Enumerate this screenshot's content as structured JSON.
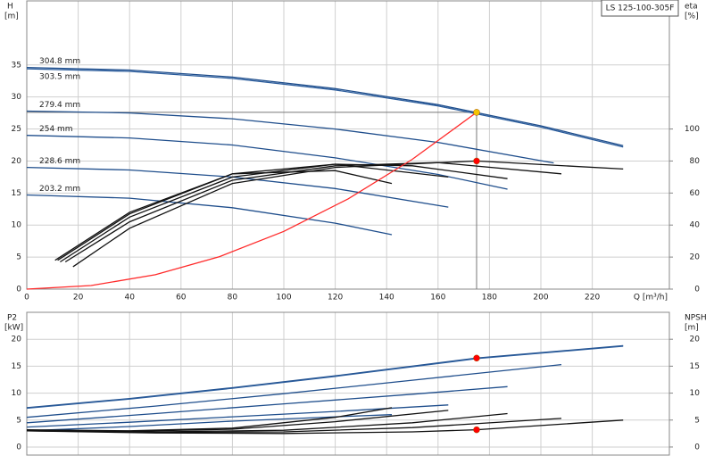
{
  "chart_data": [
    {
      "type": "line",
      "title": "LS 125-100-305F",
      "y_label": "H",
      "y_unit": "[m]",
      "y2_label": "eta",
      "y2_unit": "[%]",
      "x_label": "Q [m³/h]",
      "xlim": [
        0,
        250
      ],
      "xticks": [
        0,
        20,
        40,
        60,
        80,
        100,
        120,
        140,
        160,
        180,
        200,
        220
      ],
      "ylim": [
        0,
        45
      ],
      "yticks": [
        0,
        5,
        10,
        15,
        20,
        25,
        30,
        35
      ],
      "y2lim": [
        0,
        180
      ],
      "y2ticks": [
        0,
        20,
        40,
        60,
        80,
        100
      ],
      "grid": true,
      "show_xtick_labels": true,
      "guides": true,
      "series": [
        {
          "name": "304.8 mm",
          "color": "#1f4e8c",
          "x": [
            0,
            40,
            80,
            120,
            160,
            200,
            232
          ],
          "values": [
            34.6,
            34.2,
            33.1,
            31.3,
            28.8,
            25.5,
            22.4
          ]
        },
        {
          "name": "303.5 mm",
          "color": "#2a5c9c",
          "x": [
            0,
            40,
            80,
            120,
            160,
            200,
            232
          ],
          "values": [
            34.4,
            34.0,
            32.9,
            31.1,
            28.6,
            25.3,
            22.2
          ]
        },
        {
          "name": "279.4 mm",
          "color": "#1f4e8c",
          "x": [
            0,
            40,
            80,
            120,
            160,
            205
          ],
          "values": [
            27.8,
            27.5,
            26.6,
            25.0,
            22.9,
            19.7
          ]
        },
        {
          "name": "254 mm",
          "color": "#1f4e8c",
          "x": [
            0,
            40,
            80,
            120,
            160,
            187
          ],
          "values": [
            24.0,
            23.6,
            22.5,
            20.5,
            17.9,
            15.6
          ]
        },
        {
          "name": "228.6 mm",
          "color": "#1f4e8c",
          "x": [
            0,
            40,
            80,
            120,
            164
          ],
          "values": [
            19.0,
            18.6,
            17.5,
            15.7,
            12.8
          ]
        },
        {
          "name": "203.2 mm",
          "color": "#1f4e8c",
          "x": [
            0,
            40,
            80,
            120,
            142
          ],
          "values": [
            14.7,
            14.2,
            12.7,
            10.3,
            8.5
          ]
        },
        {
          "color": "#111111",
          "axis": "y2",
          "x": [
            18,
            40,
            80,
            120,
            175,
            232
          ],
          "values": [
            14,
            38,
            66,
            76,
            80,
            75
          ]
        },
        {
          "color": "#111111",
          "axis": "y2",
          "x": [
            15,
            40,
            80,
            120,
            160,
            208
          ],
          "values": [
            17,
            42,
            68,
            77,
            79,
            72
          ]
        },
        {
          "color": "#111111",
          "axis": "y2",
          "x": [
            13,
            40,
            80,
            120,
            150,
            187
          ],
          "values": [
            17,
            45,
            70,
            78,
            77,
            69
          ]
        },
        {
          "color": "#111111",
          "axis": "y2",
          "x": [
            12,
            40,
            80,
            120,
            164
          ],
          "values": [
            18,
            47,
            72,
            78,
            70
          ]
        },
        {
          "color": "#111111",
          "axis": "y2",
          "x": [
            11,
            40,
            80,
            120,
            142
          ],
          "values": [
            18,
            48,
            72,
            74,
            66
          ]
        },
        {
          "color": "#ff2a2a",
          "x": [
            0,
            25,
            50,
            75,
            100,
            125,
            150,
            175
          ],
          "values": [
            0,
            0.56,
            2.25,
            5.07,
            9.01,
            14.08,
            20.27,
            27.6
          ]
        }
      ],
      "points": [
        {
          "x": 175,
          "y": 27.6,
          "color": "#f5c400"
        },
        {
          "x": 175,
          "y": 80,
          "axis": "y2",
          "color": "#ff0000"
        }
      ]
    },
    {
      "type": "line",
      "y_label": "P2",
      "y_unit": "[kW]",
      "y2_label": "NPSH",
      "y2_unit": "[m]",
      "xlim": [
        0,
        250
      ],
      "xticks": [
        0,
        20,
        40,
        60,
        80,
        100,
        120,
        140,
        160,
        180,
        200,
        220
      ],
      "ylim": [
        -1.5,
        25
      ],
      "yticks": [
        0,
        5,
        10,
        15,
        20
      ],
      "y2lim": [
        -1.5,
        25
      ],
      "y2ticks": [
        0,
        5,
        10,
        15,
        20
      ],
      "grid": true,
      "show_xtick_labels": false,
      "guides": false,
      "series": [
        {
          "color": "#1f4e8c",
          "x": [
            0,
            40,
            80,
            120,
            175,
            232
          ],
          "values": [
            7.3,
            9.0,
            11.0,
            13.2,
            16.5,
            18.8
          ]
        },
        {
          "color": "#2a5c9c",
          "x": [
            0,
            40,
            80,
            120,
            175,
            232
          ],
          "values": [
            7.2,
            8.9,
            10.9,
            13.1,
            16.4,
            18.7
          ]
        },
        {
          "color": "#1f4e8c",
          "x": [
            0,
            50,
            100,
            150,
            208
          ],
          "values": [
            5.5,
            7.6,
            9.9,
            12.4,
            15.3
          ]
        },
        {
          "color": "#1f4e8c",
          "x": [
            0,
            50,
            100,
            150,
            187
          ],
          "values": [
            4.5,
            6.2,
            8.0,
            9.8,
            11.2
          ]
        },
        {
          "color": "#1f4e8c",
          "x": [
            0,
            40,
            80,
            120,
            164
          ],
          "values": [
            3.7,
            4.6,
            5.6,
            6.6,
            7.8
          ]
        },
        {
          "color": "#1f4e8c",
          "x": [
            0,
            40,
            80,
            120,
            142
          ],
          "values": [
            3.0,
            3.8,
            4.8,
            5.6,
            6.0
          ]
        },
        {
          "color": "#111111",
          "axis": "y2",
          "x": [
            0,
            50,
            100,
            150,
            175,
            232
          ],
          "values": [
            3.0,
            2.6,
            2.5,
            2.8,
            3.2,
            5.0
          ]
        },
        {
          "color": "#111111",
          "axis": "y2",
          "x": [
            0,
            50,
            100,
            150,
            208
          ],
          "values": [
            3.0,
            2.7,
            2.8,
            3.6,
            5.3
          ]
        },
        {
          "color": "#111111",
          "axis": "y2",
          "x": [
            0,
            50,
            100,
            150,
            187
          ],
          "values": [
            3.1,
            2.8,
            3.1,
            4.5,
            6.2
          ]
        },
        {
          "color": "#111111",
          "axis": "y2",
          "x": [
            0,
            40,
            80,
            120,
            164
          ],
          "values": [
            3.1,
            2.9,
            3.3,
            4.7,
            6.8
          ]
        },
        {
          "color": "#111111",
          "axis": "y2",
          "x": [
            0,
            40,
            80,
            120,
            142
          ],
          "values": [
            3.2,
            3.0,
            3.5,
            5.5,
            7.3
          ]
        }
      ],
      "points": [
        {
          "x": 175,
          "y": 16.5,
          "color": "#ff0000"
        },
        {
          "x": 175,
          "y": 3.2,
          "axis": "y2",
          "color": "#ff0000"
        }
      ]
    }
  ]
}
